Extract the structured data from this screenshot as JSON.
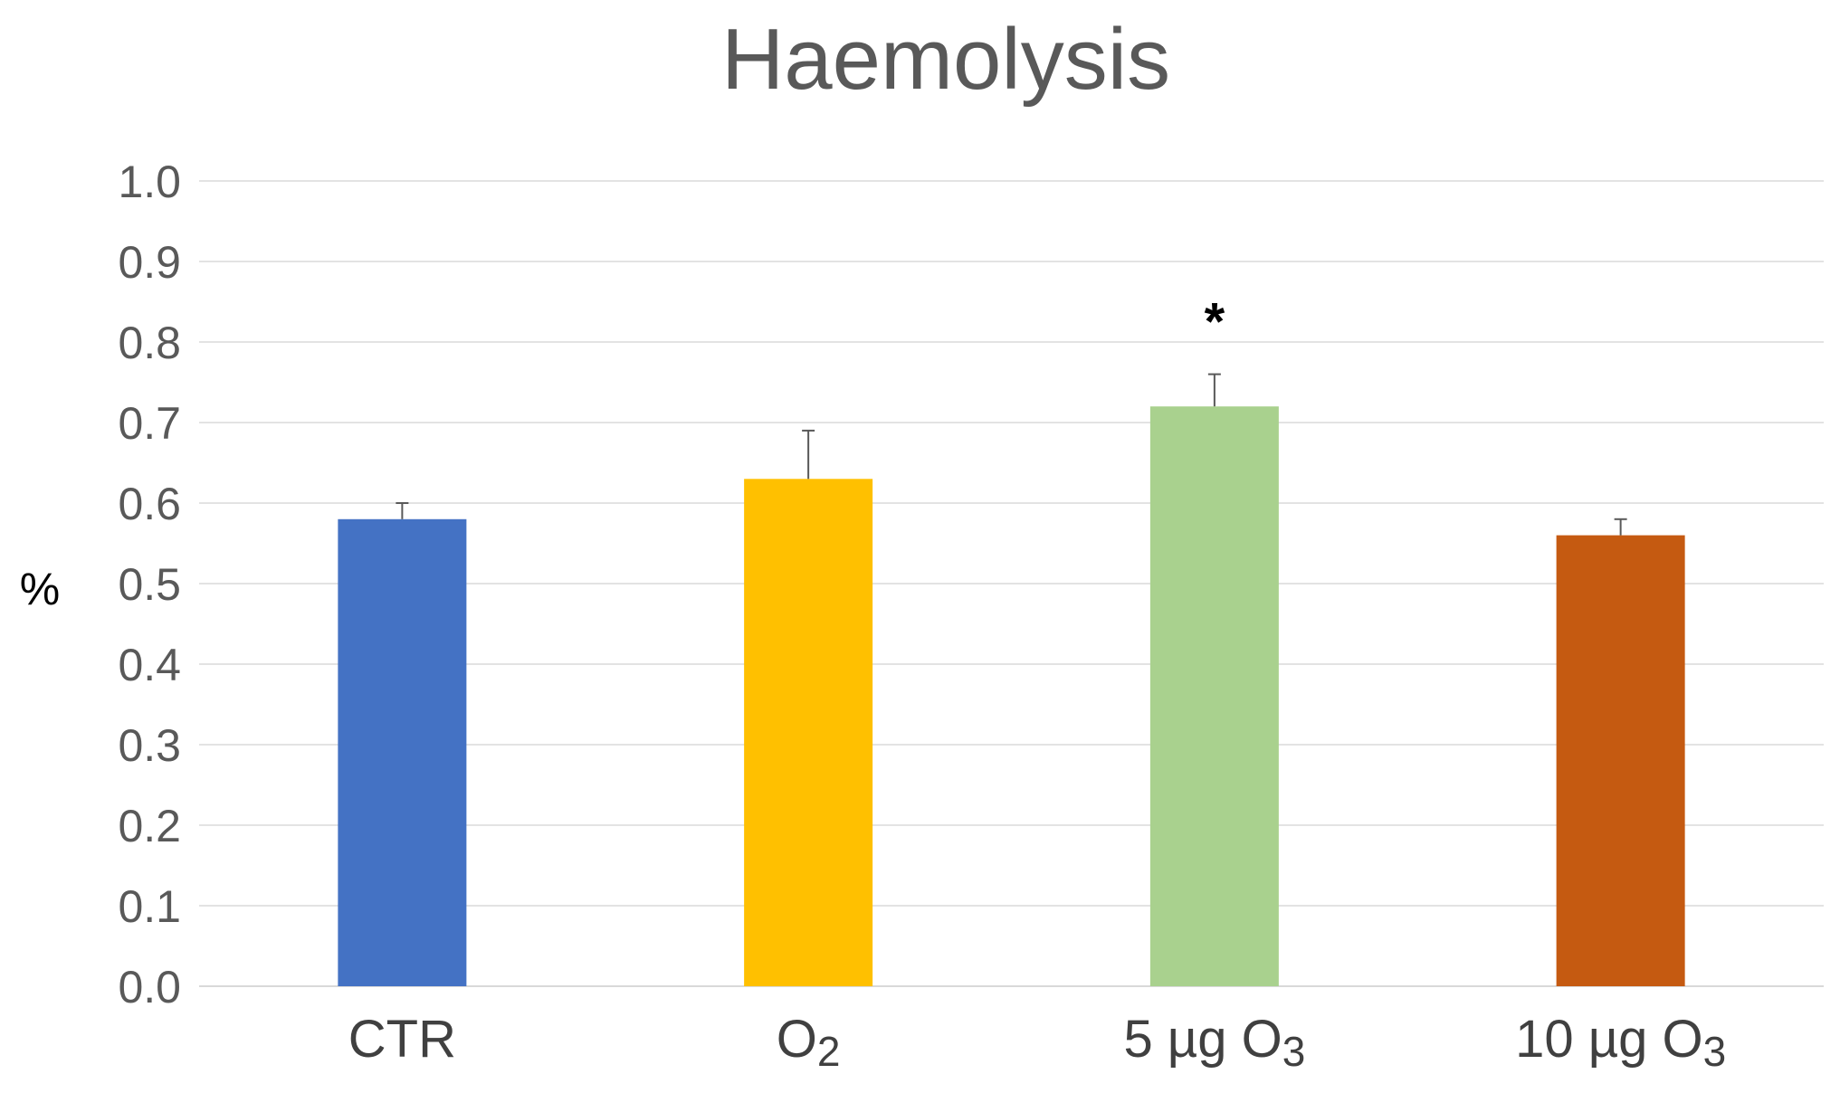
{
  "chart_data": {
    "type": "bar",
    "title": "Haemolysis",
    "xlabel": "",
    "ylabel": "%",
    "ylim": [
      0.0,
      1.0
    ],
    "yticks": [
      "0.0",
      "0.1",
      "0.2",
      "0.3",
      "0.4",
      "0.5",
      "0.6",
      "0.7",
      "0.8",
      "0.9",
      "1.0"
    ],
    "grid": true,
    "categories": [
      {
        "base": "CTR",
        "sub": ""
      },
      {
        "base": "O",
        "sub": "2"
      },
      {
        "base": "5 µg O",
        "sub": "3"
      },
      {
        "base": "10 µg O",
        "sub": "3"
      }
    ],
    "values": [
      0.58,
      0.63,
      0.72,
      0.56
    ],
    "errors": [
      0.02,
      0.06,
      0.04,
      0.02
    ],
    "colors": [
      "#4472C4",
      "#FFC000",
      "#A9D18E",
      "#C55A11"
    ],
    "annotations": [
      {
        "category_index": 2,
        "text": "*"
      }
    ]
  }
}
